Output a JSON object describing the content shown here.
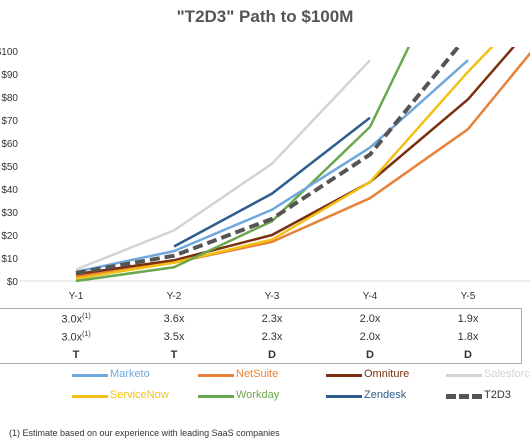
{
  "chart_data": {
    "type": "line",
    "title": "\"T2D3\" Path to $100M",
    "categories": [
      "Y-1",
      "Y-2",
      "Y-3",
      "Y-4",
      "Y-5"
    ],
    "ylim": [
      0,
      100
    ],
    "y_ticks": [
      "$0",
      "$10",
      "$20",
      "$30",
      "$40",
      "$50",
      "$60",
      "$70",
      "$80",
      "$90",
      "$100"
    ],
    "grid": false,
    "legend_position": "bottom",
    "series": [
      {
        "name": "Marketo",
        "color": "#6fa8dc",
        "dashed": false,
        "x": [
          0,
          1,
          2,
          3,
          4
        ],
        "values": [
          4,
          13,
          31,
          58,
          96
        ]
      },
      {
        "name": "NetSuite",
        "color": "#e8823a",
        "dashed": false,
        "x": [
          0,
          1,
          2,
          3,
          4,
          5
        ],
        "values": [
          2,
          8,
          17,
          36,
          66,
          118
        ]
      },
      {
        "name": "Omniture",
        "color": "#7a2f0f",
        "dashed": false,
        "x": [
          0,
          1,
          2,
          3,
          4,
          5
        ],
        "values": [
          3,
          9,
          20,
          43,
          79,
          128
        ]
      },
      {
        "name": "Salesforce",
        "color": "#d3d3d3",
        "dashed": false,
        "x": [
          0,
          1,
          2,
          3
        ],
        "values": [
          5,
          22,
          51,
          96
        ]
      },
      {
        "name": "ServiceNow",
        "color": "#f3c015",
        "dashed": false,
        "x": [
          0,
          1,
          2,
          3,
          4,
          5
        ],
        "values": [
          1,
          8,
          18,
          43,
          91,
          135
        ]
      },
      {
        "name": "Workday",
        "color": "#6aa84f",
        "dashed": false,
        "x": [
          0,
          1,
          2,
          3,
          4
        ],
        "values": [
          0,
          6,
          26,
          67,
          155
        ]
      },
      {
        "name": "Zendesk",
        "color": "#2e5d8e",
        "dashed": false,
        "x": [
          1,
          2,
          3
        ],
        "values": [
          15,
          38,
          71
        ]
      },
      {
        "name": "T2D3",
        "color": "#555555",
        "dashed": true,
        "x": [
          0,
          1,
          2,
          3,
          4
        ],
        "values": [
          3.5,
          11,
          27,
          55,
          107
        ]
      }
    ]
  },
  "metrics": {
    "rows": [
      {
        "values": [
          "3.0x",
          "3.6x",
          "2.3x",
          "2.0x",
          "1.9x"
        ],
        "notes": [
          "(1)",
          "",
          "",
          "",
          ""
        ]
      },
      {
        "values": [
          "3.0x",
          "3.5x",
          "2.3x",
          "2.0x",
          "1.8x"
        ],
        "notes": [
          "(1)",
          "",
          "",
          "",
          ""
        ]
      },
      {
        "values": [
          "T",
          "T",
          "D",
          "D",
          "D"
        ],
        "notes": [
          "",
          "",
          "",
          "",
          ""
        ]
      }
    ]
  },
  "footnote": "(1)  Estimate based on our experience with leading SaaS companies"
}
